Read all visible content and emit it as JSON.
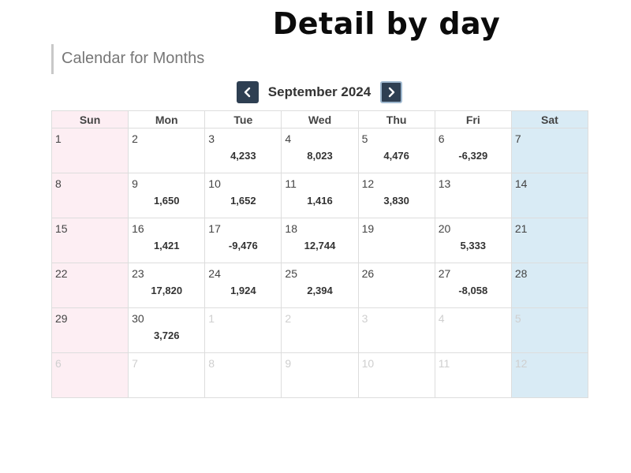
{
  "banner": {
    "title": "Detail by day"
  },
  "section": {
    "title": "Calendar for Months"
  },
  "nav": {
    "month_label": "September 2024",
    "prev_icon": "chevron-left-icon",
    "next_icon": "chevron-right-icon"
  },
  "colors": {
    "sunday_bg": "#fdeef3",
    "saturday_bg": "#d9ebf5",
    "nav_button": "#2e3f52"
  },
  "calendar": {
    "weekdays": [
      "Sun",
      "Mon",
      "Tue",
      "Wed",
      "Thu",
      "Fri",
      "Sat"
    ],
    "weeks": [
      [
        {
          "day": "1",
          "amount": "",
          "other": false
        },
        {
          "day": "2",
          "amount": "",
          "other": false
        },
        {
          "day": "3",
          "amount": "4,233",
          "other": false
        },
        {
          "day": "4",
          "amount": "8,023",
          "other": false
        },
        {
          "day": "5",
          "amount": "4,476",
          "other": false
        },
        {
          "day": "6",
          "amount": "-6,329",
          "other": false
        },
        {
          "day": "7",
          "amount": "",
          "other": false
        }
      ],
      [
        {
          "day": "8",
          "amount": "",
          "other": false
        },
        {
          "day": "9",
          "amount": "1,650",
          "other": false
        },
        {
          "day": "10",
          "amount": "1,652",
          "other": false
        },
        {
          "day": "11",
          "amount": "1,416",
          "other": false
        },
        {
          "day": "12",
          "amount": "3,830",
          "other": false
        },
        {
          "day": "13",
          "amount": "",
          "other": false
        },
        {
          "day": "14",
          "amount": "",
          "other": false
        }
      ],
      [
        {
          "day": "15",
          "amount": "",
          "other": false
        },
        {
          "day": "16",
          "amount": "1,421",
          "other": false
        },
        {
          "day": "17",
          "amount": "-9,476",
          "other": false
        },
        {
          "day": "18",
          "amount": "12,744",
          "other": false
        },
        {
          "day": "19",
          "amount": "",
          "other": false
        },
        {
          "day": "20",
          "amount": "5,333",
          "other": false
        },
        {
          "day": "21",
          "amount": "",
          "other": false
        }
      ],
      [
        {
          "day": "22",
          "amount": "",
          "other": false
        },
        {
          "day": "23",
          "amount": "17,820",
          "other": false
        },
        {
          "day": "24",
          "amount": "1,924",
          "other": false
        },
        {
          "day": "25",
          "amount": "2,394",
          "other": false
        },
        {
          "day": "26",
          "amount": "",
          "other": false
        },
        {
          "day": "27",
          "amount": "-8,058",
          "other": false
        },
        {
          "day": "28",
          "amount": "",
          "other": false
        }
      ],
      [
        {
          "day": "29",
          "amount": "",
          "other": false
        },
        {
          "day": "30",
          "amount": "3,726",
          "other": false
        },
        {
          "day": "1",
          "amount": "",
          "other": true
        },
        {
          "day": "2",
          "amount": "",
          "other": true
        },
        {
          "day": "3",
          "amount": "",
          "other": true
        },
        {
          "day": "4",
          "amount": "",
          "other": true
        },
        {
          "day": "5",
          "amount": "",
          "other": true
        }
      ],
      [
        {
          "day": "6",
          "amount": "",
          "other": true
        },
        {
          "day": "7",
          "amount": "",
          "other": true
        },
        {
          "day": "8",
          "amount": "",
          "other": true
        },
        {
          "day": "9",
          "amount": "",
          "other": true
        },
        {
          "day": "10",
          "amount": "",
          "other": true
        },
        {
          "day": "11",
          "amount": "",
          "other": true
        },
        {
          "day": "12",
          "amount": "",
          "other": true
        }
      ]
    ]
  }
}
